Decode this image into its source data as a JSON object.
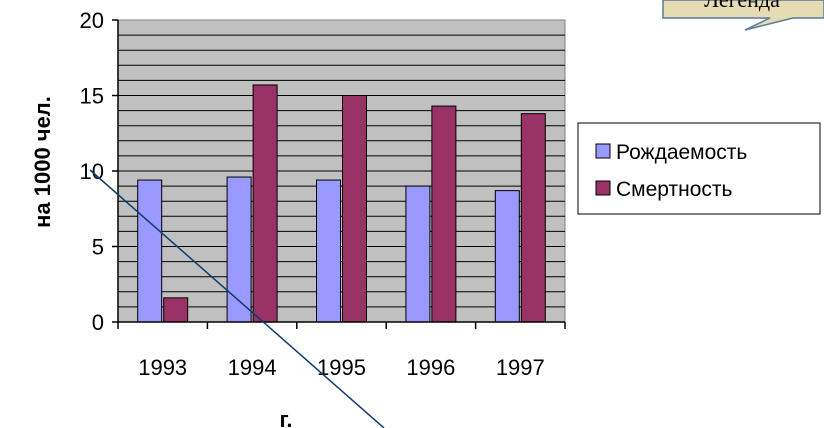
{
  "chart_data": {
    "type": "bar",
    "xlabel": "г.",
    "ylabel": "на 1000 чел.",
    "categories": [
      "1993",
      "1994",
      "1995",
      "1996",
      "1997"
    ],
    "ylim": [
      0,
      20
    ],
    "yticks": [
      "0",
      "5",
      "10",
      "15",
      "20"
    ],
    "grid": true,
    "legend_position": "right",
    "series": [
      {
        "name": "Рождаемость",
        "values": [
          9.4,
          9.6,
          9.4,
          9.0,
          8.7
        ],
        "color": "#9999ff"
      },
      {
        "name": "Смертность",
        "values": [
          1.6,
          15.7,
          15.0,
          14.3,
          13.8
        ],
        "color": "#993366"
      }
    ],
    "plot_background": "#c0c0c0"
  },
  "callout": {
    "label": "Легенда",
    "background": "#e6dcb4",
    "border": "#5a7a96"
  }
}
